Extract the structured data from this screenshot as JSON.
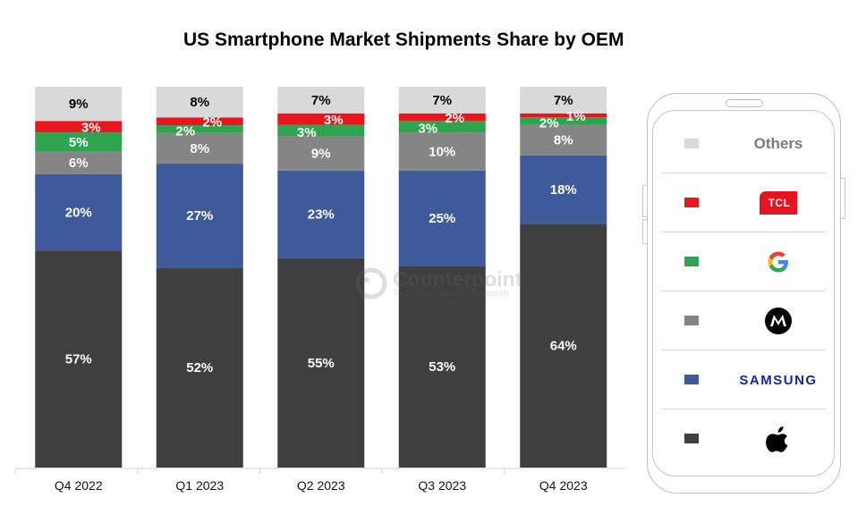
{
  "chart_data": {
    "type": "bar",
    "stacked": true,
    "percent_stacked": true,
    "title": "US Smartphone Market Shipments Share by OEM",
    "xlabel": "",
    "ylabel": "",
    "ylim": [
      0,
      100
    ],
    "grid": false,
    "legend_position": "right",
    "categories": [
      "Q4 2022",
      "Q1 2023",
      "Q2 2023",
      "Q3 2023",
      "Q4 2023"
    ],
    "series": [
      {
        "name": "Apple",
        "color": "#3f3f3f",
        "label_color": "#ffffff",
        "values": [
          57,
          52,
          55,
          53,
          64
        ]
      },
      {
        "name": "Samsung",
        "color": "#3e5a9b",
        "label_color": "#ffffff",
        "values": [
          20,
          27,
          23,
          25,
          18
        ]
      },
      {
        "name": "Motorola",
        "color": "#858585",
        "label_color": "#ffffff",
        "values": [
          6,
          8,
          9,
          10,
          8
        ]
      },
      {
        "name": "Google",
        "color": "#2ea44f",
        "label_color": "#ffffff",
        "values": [
          5,
          2,
          3,
          3,
          2
        ]
      },
      {
        "name": "TCL",
        "color": "#e8161e",
        "label_color": "#ffffff",
        "values": [
          3,
          2,
          3,
          2,
          1
        ]
      },
      {
        "name": "Others",
        "color": "#d9d9d9",
        "label_color": "#000000",
        "values": [
          9,
          8,
          7,
          7,
          7
        ]
      }
    ]
  },
  "legend": {
    "items": [
      {
        "name": "Others",
        "display": "Others",
        "color": "#d9d9d9",
        "icon": "text"
      },
      {
        "name": "TCL",
        "display": "TCL",
        "color": "#e8161e",
        "icon": "tcl-logo"
      },
      {
        "name": "Google",
        "display": "G",
        "color": "#2ea44f",
        "icon": "google-logo"
      },
      {
        "name": "Motorola",
        "display": "M",
        "color": "#858585",
        "icon": "motorola-logo"
      },
      {
        "name": "Samsung",
        "display": "SAMSUNG",
        "color": "#3e5a9b",
        "icon": "samsung-logo"
      },
      {
        "name": "Apple",
        "display": "",
        "color": "#3f3f3f",
        "icon": "apple-logo"
      }
    ]
  },
  "watermark": {
    "name": "Counterpoint",
    "tagline": "Technology Market Research"
  }
}
